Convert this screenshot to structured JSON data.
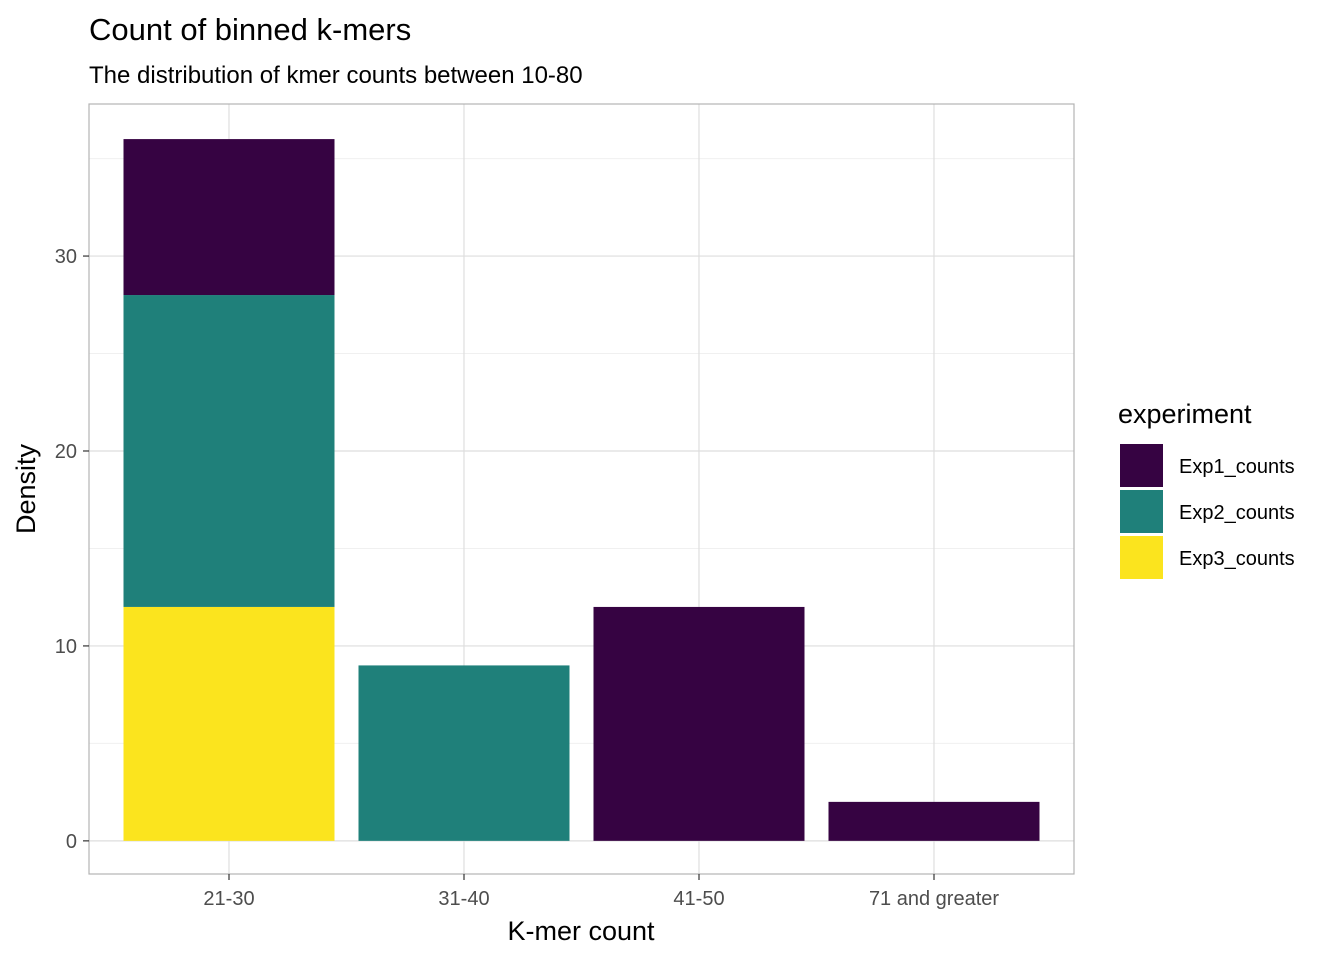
{
  "chart_data": {
    "type": "bar",
    "stacked": true,
    "title": "Count of binned k-mers",
    "subtitle": "The distribution of kmer counts between 10-80",
    "xlabel": "K-mer count",
    "ylabel": "Density",
    "categories": [
      "21-30",
      "31-40",
      "41-50",
      "71 and greater"
    ],
    "series": [
      {
        "name": "Exp1_counts",
        "color": "#360342",
        "values": [
          8,
          0,
          12,
          2
        ]
      },
      {
        "name": "Exp2_counts",
        "color": "#1F807A",
        "values": [
          16,
          9,
          0,
          0
        ]
      },
      {
        "name": "Exp3_counts",
        "color": "#FBE41E",
        "values": [
          12,
          0,
          0,
          0
        ]
      }
    ],
    "ylim": [
      -1.7,
      37.8
    ],
    "yticks": [
      0,
      10,
      20,
      30
    ],
    "grid": true,
    "legend": {
      "title": "experiment",
      "position": "right"
    }
  }
}
